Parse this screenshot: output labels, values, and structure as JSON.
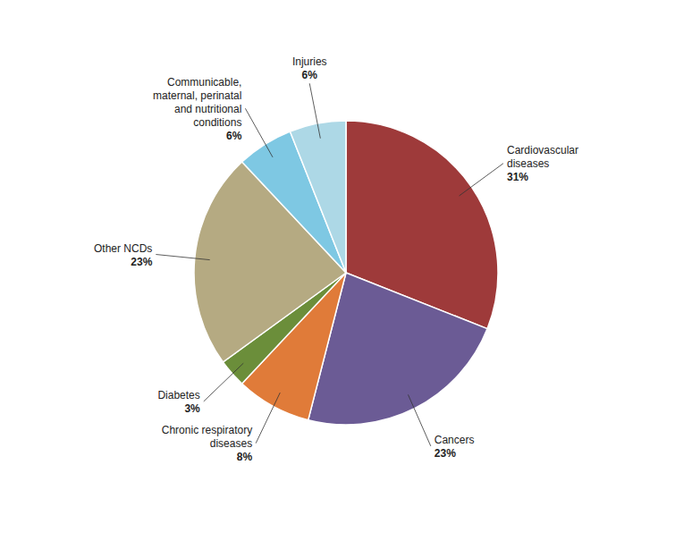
{
  "chart_data": {
    "type": "pie",
    "categories": [
      "Cardiovascular\ndiseases",
      "Cancers",
      "Chronic respiratory\ndiseases",
      "Diabetes",
      "Other NCDs",
      "Communicable,\nmaternal, perinatal\nand nutritional\nconditions",
      "Injuries"
    ],
    "values": [
      31,
      23,
      8,
      3,
      23,
      6,
      6
    ],
    "value_labels": [
      "31%",
      "23%",
      "8%",
      "3%",
      "23%",
      "6%",
      "6%"
    ],
    "colors": [
      "#9e3a3a",
      "#6b5b95",
      "#e07b39",
      "#6b8e3a",
      "#b5aa82",
      "#7ec8e3",
      "#add8e6"
    ]
  }
}
